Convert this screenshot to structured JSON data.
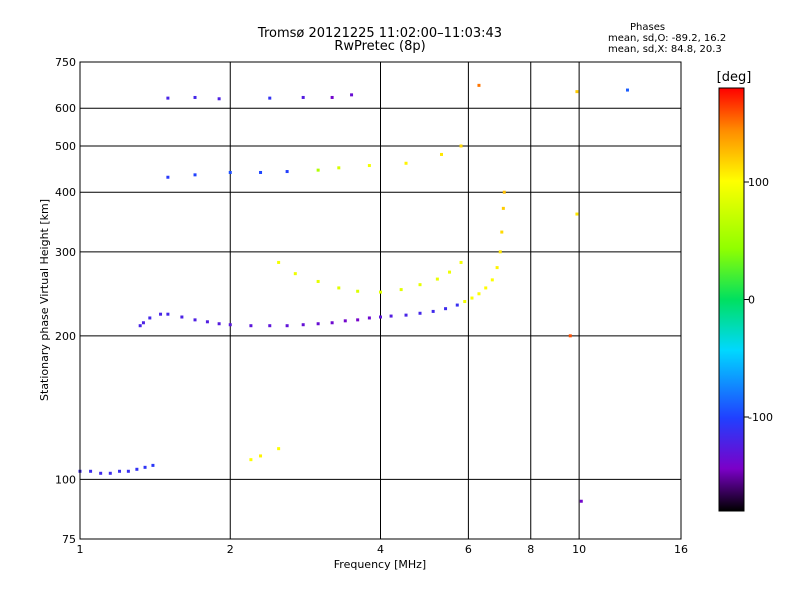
{
  "title": "Tromsø 20121225 11:02:00–11:03:43",
  "subtitle": "RwPretec (8p)",
  "phases": {
    "heading": "Phases",
    "line_o": "mean, sd,O: -89.2, 16.2",
    "line_x": "mean, sd,X:  84.8, 20.3"
  },
  "colorbar": {
    "label": "[deg]",
    "ticks": [
      {
        "value": 100,
        "label": "100"
      },
      {
        "value": 0,
        "label": "0"
      },
      {
        "value": -100,
        "label": "-100"
      }
    ],
    "range": [
      -180,
      180
    ]
  },
  "chart_data": {
    "type": "scatter",
    "title": "Tromsø 20121225 11:02:00–11:03:43",
    "subtitle": "RwPretec (8p)",
    "xlabel": "Frequency [MHz]",
    "ylabel": "Stationary phase Virtual Height [km]",
    "x_scale": "log",
    "y_scale": "log",
    "xlim": [
      1,
      16
    ],
    "ylim": [
      75,
      750
    ],
    "x_ticks": [
      {
        "value": 1,
        "label": "1"
      },
      {
        "value": 2,
        "label": "2"
      },
      {
        "value": 4,
        "label": "4"
      },
      {
        "value": 6,
        "label": "6"
      },
      {
        "value": 8,
        "label": "8"
      },
      {
        "value": 10,
        "label": "10"
      },
      {
        "value": 16,
        "label": "16"
      }
    ],
    "y_ticks": [
      {
        "value": 75,
        "label": "75"
      },
      {
        "value": 100,
        "label": "100"
      },
      {
        "value": 200,
        "label": "200"
      },
      {
        "value": 300,
        "label": "300"
      },
      {
        "value": 400,
        "label": "400"
      },
      {
        "value": 500,
        "label": "500"
      },
      {
        "value": 600,
        "label": "600"
      },
      {
        "value": 750,
        "label": "750"
      }
    ],
    "grid": true,
    "color_by": "phase (deg)",
    "points": [
      {
        "f": 1.0,
        "h": 104,
        "p": -115
      },
      {
        "f": 1.05,
        "h": 104,
        "p": -114
      },
      {
        "f": 1.1,
        "h": 103,
        "p": -116
      },
      {
        "f": 1.15,
        "h": 103,
        "p": -115
      },
      {
        "f": 1.2,
        "h": 104,
        "p": -113
      },
      {
        "f": 1.25,
        "h": 104,
        "p": -112
      },
      {
        "f": 1.3,
        "h": 105,
        "p": -110
      },
      {
        "f": 1.35,
        "h": 106,
        "p": -108
      },
      {
        "f": 1.4,
        "h": 107,
        "p": -106
      },
      {
        "f": 1.32,
        "h": 210,
        "p": -120
      },
      {
        "f": 1.34,
        "h": 213,
        "p": -122
      },
      {
        "f": 1.38,
        "h": 218,
        "p": -118
      },
      {
        "f": 1.45,
        "h": 222,
        "p": -120
      },
      {
        "f": 1.5,
        "h": 222,
        "p": -118
      },
      {
        "f": 1.6,
        "h": 219,
        "p": -121
      },
      {
        "f": 1.7,
        "h": 216,
        "p": -123
      },
      {
        "f": 1.8,
        "h": 214,
        "p": -124
      },
      {
        "f": 1.9,
        "h": 212,
        "p": -126
      },
      {
        "f": 2.0,
        "h": 211,
        "p": -128
      },
      {
        "f": 2.2,
        "h": 210,
        "p": -129
      },
      {
        "f": 2.4,
        "h": 210,
        "p": -130
      },
      {
        "f": 2.6,
        "h": 210,
        "p": -131
      },
      {
        "f": 2.8,
        "h": 211,
        "p": -133
      },
      {
        "f": 3.0,
        "h": 212,
        "p": -135
      },
      {
        "f": 3.2,
        "h": 213,
        "p": -138
      },
      {
        "f": 3.4,
        "h": 215,
        "p": -140
      },
      {
        "f": 3.6,
        "h": 216,
        "p": -142
      },
      {
        "f": 3.8,
        "h": 218,
        "p": -138
      },
      {
        "f": 4.0,
        "h": 219,
        "p": -130
      },
      {
        "f": 4.2,
        "h": 220,
        "p": -125
      },
      {
        "f": 4.5,
        "h": 221,
        "p": -120
      },
      {
        "f": 4.8,
        "h": 223,
        "p": -118
      },
      {
        "f": 5.1,
        "h": 225,
        "p": -116
      },
      {
        "f": 5.4,
        "h": 228,
        "p": -115
      },
      {
        "f": 5.7,
        "h": 232,
        "p": -112
      },
      {
        "f": 5.9,
        "h": 236,
        "p": 95
      },
      {
        "f": 6.1,
        "h": 240,
        "p": 98
      },
      {
        "f": 6.3,
        "h": 245,
        "p": 100
      },
      {
        "f": 6.5,
        "h": 252,
        "p": 102
      },
      {
        "f": 6.7,
        "h": 262,
        "p": 100
      },
      {
        "f": 6.85,
        "h": 278,
        "p": 105
      },
      {
        "f": 6.95,
        "h": 300,
        "p": 110
      },
      {
        "f": 7.0,
        "h": 330,
        "p": 115
      },
      {
        "f": 7.05,
        "h": 370,
        "p": 120
      },
      {
        "f": 7.08,
        "h": 400,
        "p": 125
      },
      {
        "f": 2.5,
        "h": 285,
        "p": 95
      },
      {
        "f": 2.7,
        "h": 270,
        "p": 92
      },
      {
        "f": 3.0,
        "h": 260,
        "p": 88
      },
      {
        "f": 3.3,
        "h": 252,
        "p": 85
      },
      {
        "f": 3.6,
        "h": 248,
        "p": 82
      },
      {
        "f": 4.0,
        "h": 247,
        "p": 84
      },
      {
        "f": 4.4,
        "h": 250,
        "p": 86
      },
      {
        "f": 4.8,
        "h": 256,
        "p": 88
      },
      {
        "f": 5.2,
        "h": 263,
        "p": 90
      },
      {
        "f": 5.5,
        "h": 272,
        "p": 92
      },
      {
        "f": 5.8,
        "h": 285,
        "p": 95
      },
      {
        "f": 1.5,
        "h": 430,
        "p": -105
      },
      {
        "f": 1.7,
        "h": 435,
        "p": -100
      },
      {
        "f": 2.0,
        "h": 440,
        "p": -95
      },
      {
        "f": 2.3,
        "h": 440,
        "p": -98
      },
      {
        "f": 2.6,
        "h": 442,
        "p": -102
      },
      {
        "f": 3.0,
        "h": 445,
        "p": 60
      },
      {
        "f": 3.3,
        "h": 450,
        "p": 80
      },
      {
        "f": 3.8,
        "h": 455,
        "p": 95
      },
      {
        "f": 4.5,
        "h": 460,
        "p": 105
      },
      {
        "f": 5.3,
        "h": 480,
        "p": 110
      },
      {
        "f": 5.8,
        "h": 500,
        "p": 115
      },
      {
        "f": 1.5,
        "h": 630,
        "p": -120
      },
      {
        "f": 1.7,
        "h": 632,
        "p": -118
      },
      {
        "f": 1.9,
        "h": 628,
        "p": -122
      },
      {
        "f": 2.4,
        "h": 630,
        "p": -110
      },
      {
        "f": 2.8,
        "h": 632,
        "p": -125
      },
      {
        "f": 3.2,
        "h": 632,
        "p": -140
      },
      {
        "f": 3.5,
        "h": 640,
        "p": -135
      },
      {
        "f": 2.2,
        "h": 110,
        "p": 100
      },
      {
        "f": 2.3,
        "h": 112,
        "p": 105
      },
      {
        "f": 2.5,
        "h": 116,
        "p": 100
      },
      {
        "f": 6.3,
        "h": 670,
        "p": 150
      },
      {
        "f": 9.9,
        "h": 650,
        "p": 120
      },
      {
        "f": 12.5,
        "h": 655,
        "p": -90
      },
      {
        "f": 9.9,
        "h": 360,
        "p": 110
      },
      {
        "f": 9.6,
        "h": 200,
        "p": 160
      },
      {
        "f": 10.1,
        "h": 90,
        "p": -140
      }
    ]
  }
}
